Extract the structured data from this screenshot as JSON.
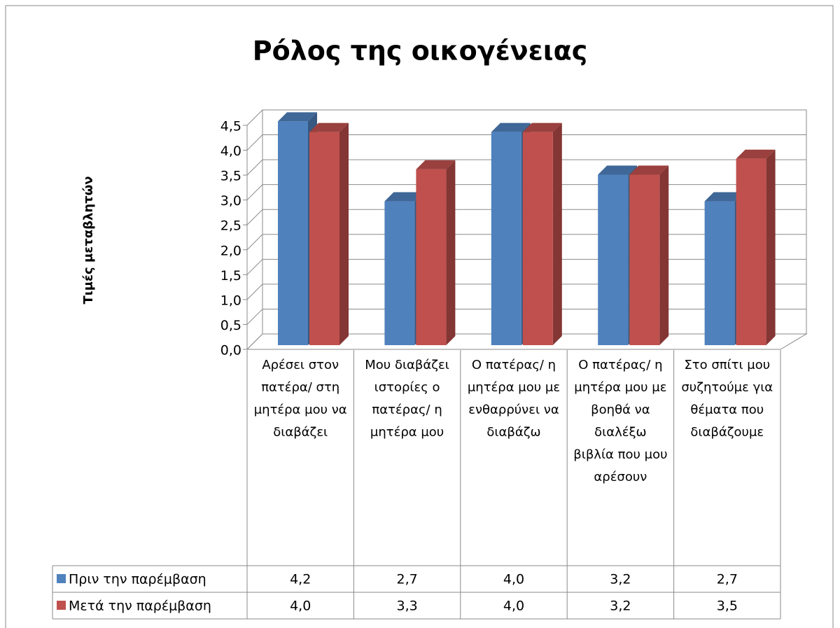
{
  "chart_data": {
    "type": "bar3d",
    "title": "Ρόλος της οικογένειας",
    "y_label": "Τιμές μεταβλητών",
    "categories": [
      "Αρέσει στον πατέρα/ στη μητέρα μου να διαβάζει",
      "Μου διαβάζει ιστορίες ο πατέρας/ η μητέρα μου",
      "Ο πατέρας/ η μητέρα μου με ενθαρρύνει να διαβάζω",
      "Ο πατέρας/ η μητέρα μου με βοηθά να διαλέξω βιβλία που μου αρέσουν",
      "Στο σπίτι μου συζητούμε για θέματα που διαβάζουμε"
    ],
    "series": [
      {
        "name": "Πριν την παρέμβαση",
        "color": "#4f81bd",
        "values": [
          4.2,
          2.7,
          4.0,
          3.2,
          2.7
        ],
        "value_labels": [
          "4,2",
          "2,7",
          "4,0",
          "3,2",
          "2,7"
        ]
      },
      {
        "name": "Μετά την παρέμβαση",
        "color": "#c0504d",
        "values": [
          4.0,
          3.3,
          4.0,
          3.2,
          3.5
        ],
        "value_labels": [
          "4,0",
          "3,3",
          "4,0",
          "3,2",
          "3,5"
        ]
      }
    ],
    "ylim": [
      0,
      4.5
    ],
    "yticks": [
      {
        "value": 0,
        "label": "0,0"
      },
      {
        "value": 0.5,
        "label": "0,5"
      },
      {
        "value": 1,
        "label": "1,0"
      },
      {
        "value": 1.5,
        "label": "1,5"
      },
      {
        "value": 2,
        "label": "2,0"
      },
      {
        "value": 2.5,
        "label": "2,5"
      },
      {
        "value": 3,
        "label": "3,0"
      },
      {
        "value": 3.5,
        "label": "3,5"
      },
      {
        "value": 4,
        "label": "4,0"
      },
      {
        "value": 4.5,
        "label": "4,5"
      }
    ],
    "grid": true
  }
}
